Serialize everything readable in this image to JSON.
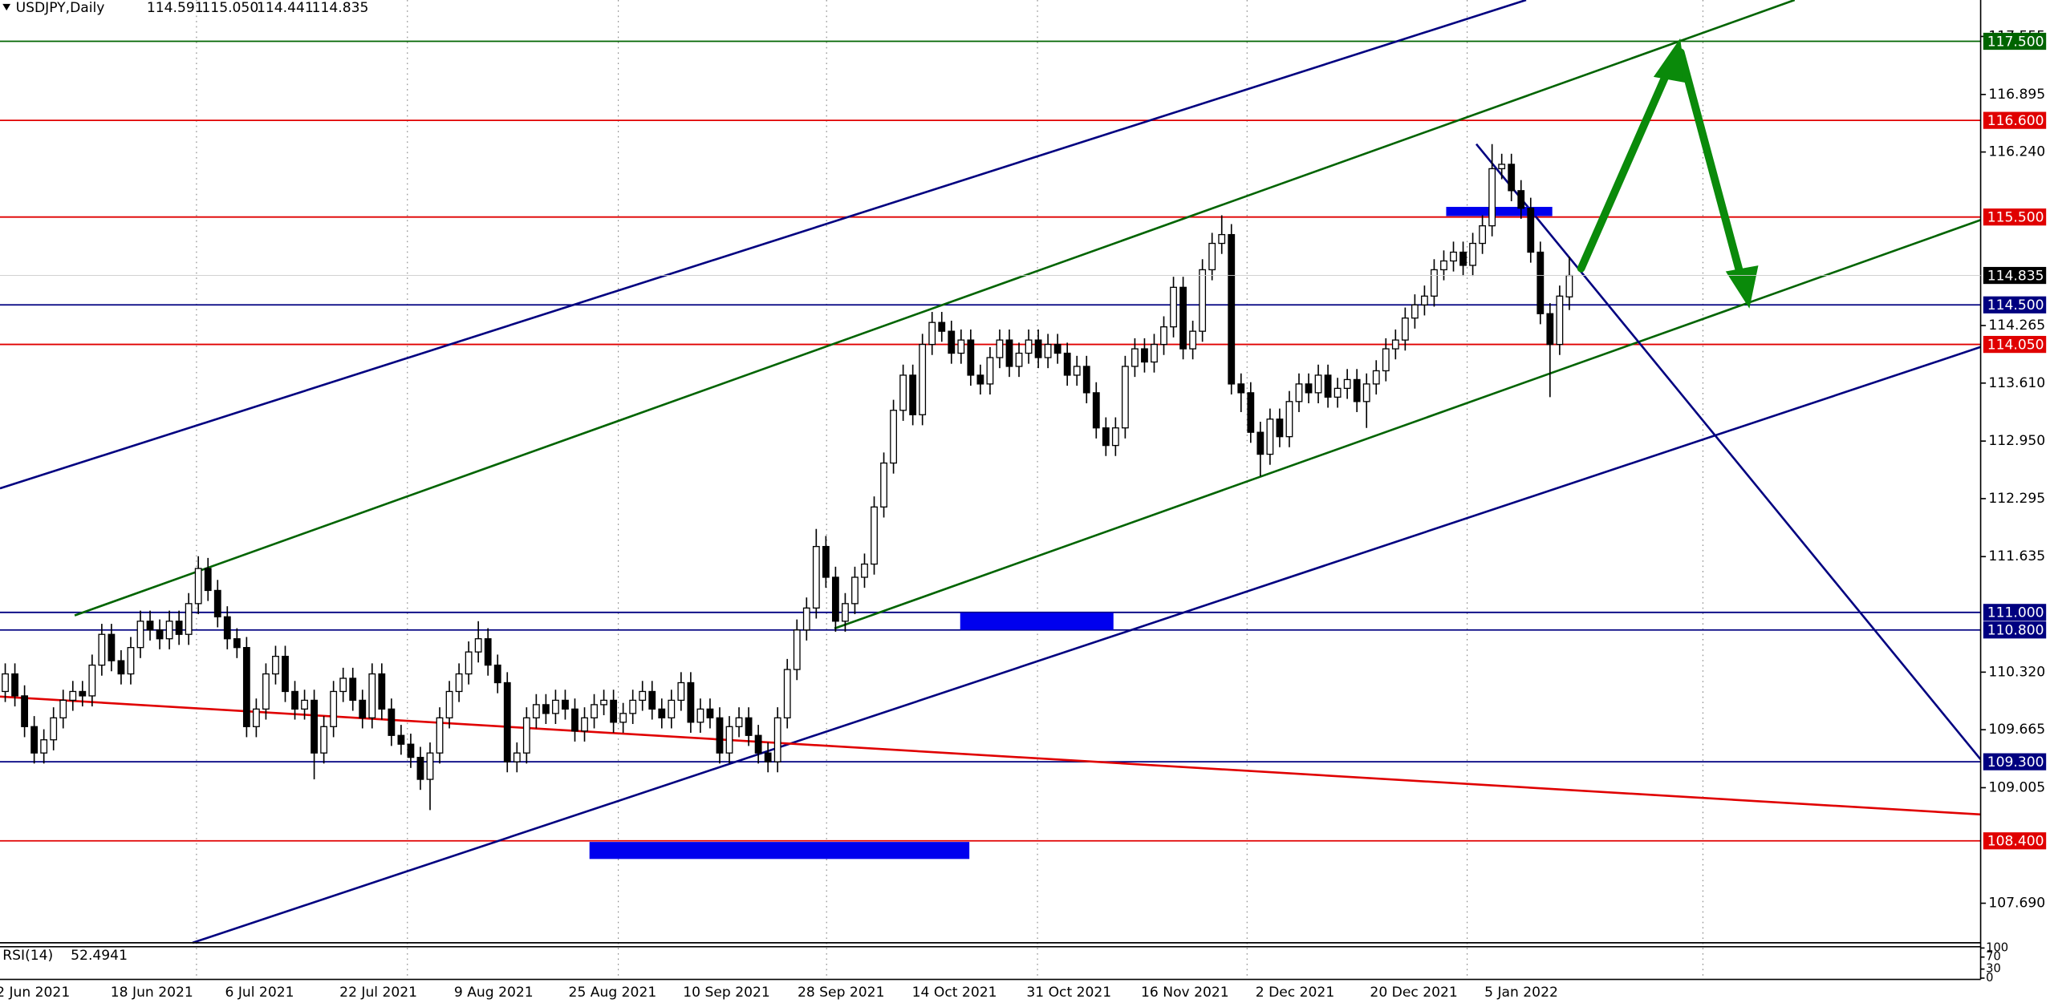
{
  "chart_data": {
    "type": "candlestick",
    "symbol": "USDJPY,Daily",
    "ohlc_labels": [
      "114.591",
      "115.050",
      "114.441",
      "114.835"
    ],
    "ylim": [
      107.24,
      117.97
    ],
    "yticks": [
      117.555,
      116.895,
      {
        "value": 116.24,
        "label": "116.240"
      },
      114.265,
      {
        "value": 113.61,
        "label": "113.610"
      },
      {
        "value": 112.95,
        "label": "112.950"
      },
      112.295,
      111.635,
      {
        "value": 110.32,
        "label": "110.320"
      },
      109.665,
      109.005,
      {
        "value": 107.69,
        "label": "107.690"
      }
    ],
    "levels": [
      {
        "value": 117.5,
        "label": "117.500",
        "color": "#006400"
      },
      {
        "value": 116.6,
        "label": "116.600",
        "color": "#e00000"
      },
      {
        "value": 115.5,
        "label": "115.500",
        "color": "#e00000"
      },
      {
        "value": 114.5,
        "label": "114.500",
        "color": "#000080"
      },
      {
        "value": 114.05,
        "label": "114.050",
        "color": "#e00000"
      },
      {
        "value": 111.0,
        "label": "111.000",
        "color": "#000080"
      },
      {
        "value": 110.8,
        "label": "110.800",
        "color": "#000080"
      },
      {
        "value": 109.3,
        "label": "109.300",
        "color": "#000080"
      },
      {
        "value": 108.4,
        "label": "108.400",
        "color": "#e00000"
      }
    ],
    "x_labels": [
      "2 Jun 2021",
      "18 Jun 2021",
      "6 Jul 2021",
      "22 Jul 2021",
      "9 Aug 2021",
      "25 Aug 2021",
      "10 Sep 2021",
      "28 Sep 2021",
      "14 Oct 2021",
      "31 Oct 2021",
      "16 Nov 2021",
      "2 Dec 2021",
      "20 Dec 2021",
      "5 Jan 2022"
    ],
    "rsi": {
      "label": "RSI(14)",
      "value": 52.4941,
      "ticks": [
        100,
        70,
        30,
        0
      ]
    },
    "ohlc": [
      [
        110.1,
        110.42,
        109.98,
        110.3
      ],
      [
        110.3,
        110.42,
        109.93,
        110.05
      ],
      [
        110.05,
        110.17,
        109.58,
        109.7
      ],
      [
        109.7,
        109.82,
        109.28,
        109.4
      ],
      [
        109.4,
        109.67,
        109.28,
        109.55
      ],
      [
        109.55,
        109.92,
        109.43,
        109.8
      ],
      [
        109.8,
        110.12,
        109.68,
        110.0
      ],
      [
        110.0,
        110.22,
        109.88,
        110.1
      ],
      [
        110.1,
        110.22,
        109.93,
        110.05
      ],
      [
        110.05,
        110.52,
        109.93,
        110.4
      ],
      [
        110.4,
        110.87,
        110.28,
        110.75
      ],
      [
        110.75,
        110.87,
        110.33,
        110.45
      ],
      [
        110.45,
        110.57,
        110.18,
        110.3
      ],
      [
        110.3,
        110.72,
        110.18,
        110.6
      ],
      [
        110.6,
        111.02,
        110.48,
        110.9
      ],
      [
        110.9,
        111.02,
        110.68,
        110.8
      ],
      [
        110.8,
        110.92,
        110.58,
        110.7
      ],
      [
        110.7,
        111.02,
        110.58,
        110.9
      ],
      [
        110.9,
        111.02,
        110.63,
        110.75
      ],
      [
        110.75,
        111.22,
        110.63,
        111.1
      ],
      [
        111.1,
        111.64,
        110.98,
        111.5
      ],
      [
        111.5,
        111.62,
        111.13,
        111.25
      ],
      [
        111.25,
        111.37,
        110.83,
        110.95
      ],
      [
        110.95,
        111.07,
        110.58,
        110.7
      ],
      [
        110.7,
        110.82,
        110.48,
        110.6
      ],
      [
        110.6,
        110.72,
        109.58,
        109.7
      ],
      [
        109.7,
        110.02,
        109.58,
        109.9
      ],
      [
        109.9,
        110.42,
        109.78,
        110.3
      ],
      [
        110.3,
        110.62,
        110.18,
        110.5
      ],
      [
        110.5,
        110.62,
        109.98,
        110.1
      ],
      [
        110.1,
        110.22,
        109.78,
        109.9
      ],
      [
        109.9,
        110.12,
        109.78,
        110.0
      ],
      [
        110.0,
        110.12,
        109.1,
        109.4
      ],
      [
        109.4,
        109.82,
        109.28,
        109.7
      ],
      [
        109.7,
        110.22,
        109.58,
        110.1
      ],
      [
        110.1,
        110.37,
        109.98,
        110.25
      ],
      [
        110.25,
        110.37,
        109.88,
        110.0
      ],
      [
        110.0,
        110.12,
        109.68,
        109.8
      ],
      [
        109.8,
        110.42,
        109.68,
        110.3
      ],
      [
        110.3,
        110.42,
        109.78,
        109.9
      ],
      [
        109.9,
        110.02,
        109.48,
        109.6
      ],
      [
        109.6,
        109.72,
        109.38,
        109.5
      ],
      [
        109.5,
        109.62,
        109.23,
        109.35
      ],
      [
        109.35,
        109.47,
        108.98,
        109.1
      ],
      [
        109.1,
        109.52,
        108.75,
        109.4
      ],
      [
        109.4,
        109.92,
        109.28,
        109.8
      ],
      [
        109.8,
        110.22,
        109.68,
        110.1
      ],
      [
        110.1,
        110.42,
        109.98,
        110.3
      ],
      [
        110.3,
        110.67,
        110.18,
        110.55
      ],
      [
        110.55,
        110.9,
        110.43,
        110.7
      ],
      [
        110.7,
        110.82,
        110.28,
        110.4
      ],
      [
        110.4,
        110.52,
        110.08,
        110.2
      ],
      [
        110.2,
        110.32,
        109.18,
        109.3
      ],
      [
        109.3,
        109.52,
        109.18,
        109.4
      ],
      [
        109.4,
        109.92,
        109.28,
        109.8
      ],
      [
        109.8,
        110.07,
        109.68,
        109.95
      ],
      [
        109.95,
        110.07,
        109.73,
        109.85
      ],
      [
        109.85,
        110.12,
        109.73,
        110.0
      ],
      [
        110.0,
        110.12,
        109.78,
        109.9
      ],
      [
        109.9,
        110.02,
        109.53,
        109.65
      ],
      [
        109.65,
        109.92,
        109.53,
        109.8
      ],
      [
        109.8,
        110.07,
        109.68,
        109.95
      ],
      [
        109.95,
        110.12,
        109.83,
        110.0
      ],
      [
        110.0,
        110.12,
        109.63,
        109.75
      ],
      [
        109.75,
        109.97,
        109.63,
        109.85
      ],
      [
        109.85,
        110.12,
        109.73,
        110.0
      ],
      [
        110.0,
        110.22,
        109.88,
        110.1
      ],
      [
        110.1,
        110.22,
        109.78,
        109.9
      ],
      [
        109.9,
        110.02,
        109.68,
        109.8
      ],
      [
        109.8,
        110.12,
        109.68,
        110.0
      ],
      [
        110.0,
        110.32,
        109.88,
        110.2
      ],
      [
        110.2,
        110.32,
        109.63,
        109.75
      ],
      [
        109.75,
        110.02,
        109.63,
        109.9
      ],
      [
        109.9,
        110.02,
        109.68,
        109.8
      ],
      [
        109.8,
        109.92,
        109.28,
        109.4
      ],
      [
        109.4,
        109.82,
        109.28,
        109.7
      ],
      [
        109.7,
        109.92,
        109.58,
        109.8
      ],
      [
        109.8,
        109.92,
        109.48,
        109.6
      ],
      [
        109.6,
        109.72,
        109.28,
        109.4
      ],
      [
        109.4,
        109.52,
        109.18,
        109.3
      ],
      [
        109.3,
        109.92,
        109.18,
        109.8
      ],
      [
        109.8,
        110.47,
        109.68,
        110.35
      ],
      [
        110.35,
        110.92,
        110.23,
        110.8
      ],
      [
        110.8,
        111.17,
        110.68,
        111.05
      ],
      [
        111.05,
        111.95,
        110.93,
        111.75
      ],
      [
        111.75,
        111.87,
        111.28,
        111.4
      ],
      [
        111.4,
        111.52,
        110.78,
        110.9
      ],
      [
        110.9,
        111.22,
        110.78,
        111.1
      ],
      [
        111.1,
        111.52,
        110.98,
        111.4
      ],
      [
        111.4,
        111.67,
        111.28,
        111.55
      ],
      [
        111.55,
        112.32,
        111.43,
        112.2
      ],
      [
        112.2,
        112.82,
        112.08,
        112.7
      ],
      [
        112.7,
        113.42,
        112.58,
        113.3
      ],
      [
        113.3,
        113.82,
        113.18,
        113.7
      ],
      [
        113.7,
        113.82,
        113.13,
        113.25
      ],
      [
        113.25,
        114.17,
        113.13,
        114.05
      ],
      [
        114.05,
        114.42,
        113.93,
        114.3
      ],
      [
        114.3,
        114.42,
        114.08,
        114.2
      ],
      [
        114.2,
        114.32,
        113.83,
        113.95
      ],
      [
        113.95,
        114.22,
        113.83,
        114.1
      ],
      [
        114.1,
        114.22,
        113.58,
        113.7
      ],
      [
        113.7,
        113.82,
        113.48,
        113.6
      ],
      [
        113.6,
        114.02,
        113.48,
        113.9
      ],
      [
        113.9,
        114.22,
        113.78,
        114.1
      ],
      [
        114.1,
        114.22,
        113.68,
        113.8
      ],
      [
        113.8,
        114.07,
        113.68,
        113.95
      ],
      [
        113.95,
        114.22,
        113.83,
        114.1
      ],
      [
        114.1,
        114.22,
        113.78,
        113.9
      ],
      [
        113.9,
        114.17,
        113.78,
        114.05
      ],
      [
        114.05,
        114.17,
        113.83,
        113.95
      ],
      [
        113.95,
        114.07,
        113.58,
        113.7
      ],
      [
        113.7,
        113.92,
        113.58,
        113.8
      ],
      [
        113.8,
        113.92,
        113.38,
        113.5
      ],
      [
        113.5,
        113.62,
        112.98,
        113.1
      ],
      [
        113.1,
        113.22,
        112.78,
        112.9
      ],
      [
        112.9,
        113.22,
        112.78,
        113.1
      ],
      [
        113.1,
        113.92,
        112.98,
        113.8
      ],
      [
        113.8,
        114.12,
        113.68,
        114.0
      ],
      [
        114.0,
        114.12,
        113.73,
        113.85
      ],
      [
        113.85,
        114.17,
        113.73,
        114.05
      ],
      [
        114.05,
        114.37,
        113.93,
        114.25
      ],
      [
        114.25,
        114.82,
        114.13,
        114.7
      ],
      [
        114.7,
        114.82,
        113.88,
        114.0
      ],
      [
        114.0,
        114.32,
        113.88,
        114.2
      ],
      [
        114.2,
        115.02,
        114.08,
        114.9
      ],
      [
        114.9,
        115.32,
        114.78,
        115.2
      ],
      [
        115.2,
        115.52,
        115.08,
        115.3
      ],
      [
        115.3,
        115.42,
        113.48,
        113.6
      ],
      [
        113.6,
        113.72,
        113.28,
        113.5
      ],
      [
        113.5,
        113.62,
        112.93,
        113.05
      ],
      [
        113.05,
        113.17,
        112.55,
        112.8
      ],
      [
        112.8,
        113.32,
        112.68,
        113.2
      ],
      [
        113.2,
        113.32,
        112.88,
        113.0
      ],
      [
        113.0,
        113.52,
        112.88,
        113.4
      ],
      [
        113.4,
        113.72,
        113.28,
        113.6
      ],
      [
        113.6,
        113.72,
        113.38,
        113.5
      ],
      [
        113.5,
        113.82,
        113.38,
        113.7
      ],
      [
        113.7,
        113.82,
        113.33,
        113.45
      ],
      [
        113.45,
        113.67,
        113.33,
        113.55
      ],
      [
        113.55,
        113.77,
        113.43,
        113.65
      ],
      [
        113.65,
        113.77,
        113.28,
        113.4
      ],
      [
        113.4,
        113.72,
        113.1,
        113.6
      ],
      [
        113.6,
        113.87,
        113.48,
        113.75
      ],
      [
        113.75,
        114.12,
        113.63,
        114.0
      ],
      [
        114.0,
        114.22,
        113.88,
        114.1
      ],
      [
        114.1,
        114.47,
        113.98,
        114.35
      ],
      [
        114.35,
        114.62,
        114.23,
        114.5
      ],
      [
        114.5,
        114.72,
        114.38,
        114.6
      ],
      [
        114.6,
        115.02,
        114.48,
        114.9
      ],
      [
        114.9,
        115.12,
        114.78,
        115.0
      ],
      [
        115.0,
        115.22,
        114.88,
        115.1
      ],
      [
        115.1,
        115.22,
        114.83,
        114.95
      ],
      [
        114.95,
        115.32,
        114.83,
        115.2
      ],
      [
        115.2,
        115.52,
        115.08,
        115.4
      ],
      [
        115.4,
        116.33,
        115.28,
        116.05
      ],
      [
        116.05,
        116.22,
        115.93,
        116.1
      ],
      [
        116.1,
        116.22,
        115.68,
        115.8
      ],
      [
        115.8,
        115.92,
        115.48,
        115.6
      ],
      [
        115.6,
        115.72,
        114.98,
        115.1
      ],
      [
        115.1,
        115.22,
        114.28,
        114.4
      ],
      [
        114.4,
        114.52,
        113.45,
        114.05
      ],
      [
        114.05,
        114.72,
        113.93,
        114.6
      ],
      [
        114.591,
        115.05,
        114.441,
        114.835
      ]
    ]
  }
}
